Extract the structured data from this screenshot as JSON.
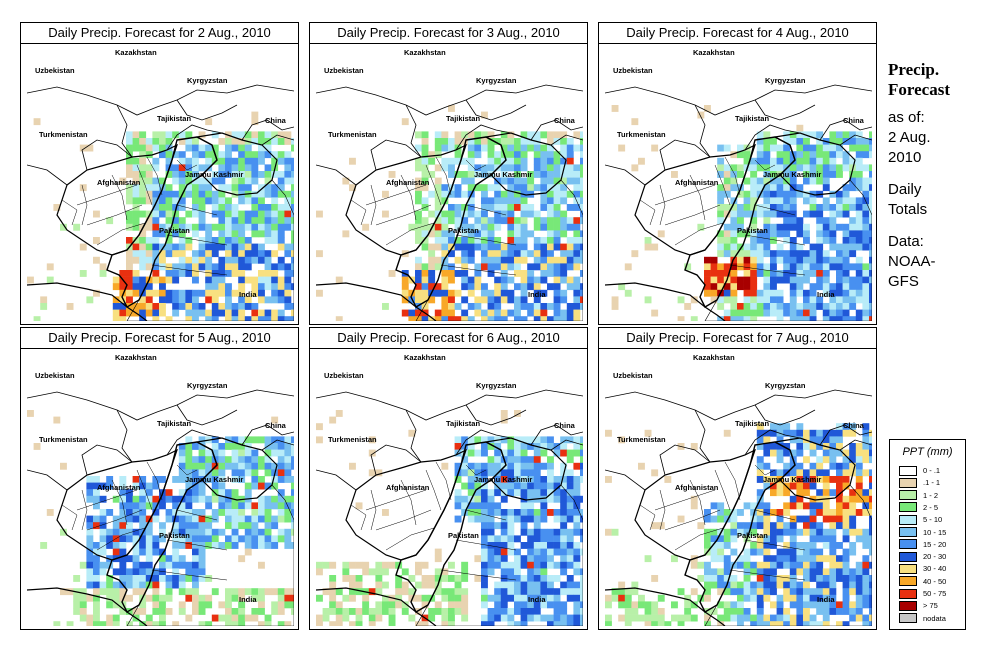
{
  "panels": [
    {
      "title": "Daily Precip. Forecast for  2 Aug., 2010",
      "seed": 11,
      "profile": "south-heavy"
    },
    {
      "title": "Daily Precip. Forecast for  3 Aug., 2010",
      "seed": 23,
      "profile": "south-heavy"
    },
    {
      "title": "Daily Precip. Forecast for  4 Aug., 2010",
      "seed": 37,
      "profile": "east"
    },
    {
      "title": "Daily Precip. Forecast for  5 Aug., 2010",
      "seed": 41,
      "profile": "mid"
    },
    {
      "title": "Daily Precip. Forecast for  6 Aug., 2010",
      "seed": 53,
      "profile": "east-light"
    },
    {
      "title": "Daily Precip. Forecast for  7 Aug., 2010",
      "seed": 67,
      "profile": "east-heavy"
    }
  ],
  "countries": {
    "kazakhstan": "Kazakhstan",
    "uzbekistan": "Uzbekistan",
    "kyrgyzstan": "Kyrgyzstan",
    "tajikistan": "Tajikistan",
    "turkmenistan": "Turkmenistan",
    "china": "China",
    "afghanistan": "Afghanistan",
    "jammu_kashmir": "Jammu Kashmir",
    "pakistan": "Pakistan",
    "india": "India"
  },
  "side_panel": {
    "title_line1": "Precip.",
    "title_line2": "Forecast",
    "asof_line1": "as of:",
    "asof_line2": "2 Aug.",
    "asof_line3": "2010",
    "daily_line1": "Daily",
    "daily_line2": "Totals",
    "data_line1": "Data:",
    "data_line2": "NOAA-",
    "data_line3": "GFS"
  },
  "legend": {
    "title": "PPT (mm)",
    "items": [
      {
        "label": "0 - .1",
        "color": "#ffffff"
      },
      {
        "label": ".1 - 1",
        "color": "#e8d3b0"
      },
      {
        "label": "1 - 2",
        "color": "#b8f0a8"
      },
      {
        "label": "2 - 5",
        "color": "#78e878"
      },
      {
        "label": "5 - 10",
        "color": "#b8ecf8"
      },
      {
        "label": "10 - 15",
        "color": "#78c0f0"
      },
      {
        "label": "15 - 20",
        "color": "#4890f0"
      },
      {
        "label": "20 - 30",
        "color": "#2058d8"
      },
      {
        "label": "30 - 40",
        "color": "#f8e080"
      },
      {
        "label": "40 - 50",
        "color": "#f8a828"
      },
      {
        "label": "50 - 75",
        "color": "#e83010"
      },
      {
        "label": "> 75",
        "color": "#a80000"
      },
      {
        "label": "nodata",
        "color": "#c8c8c8"
      }
    ]
  }
}
